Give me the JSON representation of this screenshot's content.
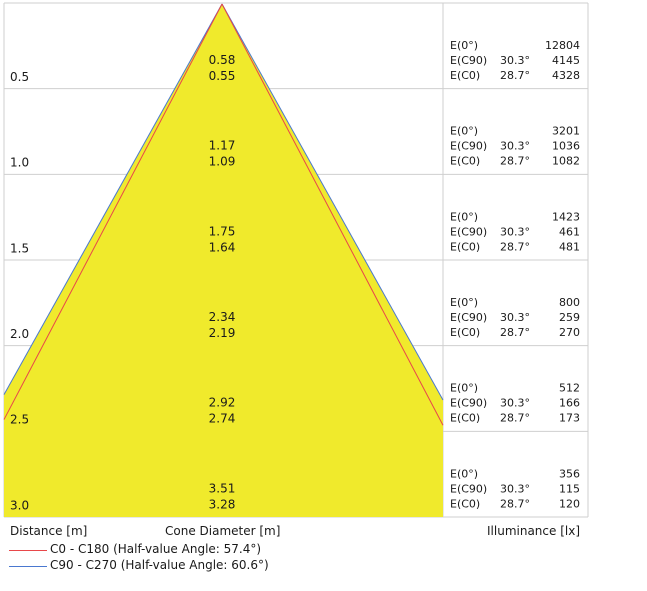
{
  "rows": [
    {
      "distance": "0.5",
      "diameter_c0": "0.55",
      "diameter_c90": "0.58",
      "e0": "12804",
      "e_c90_angle": "30.3°",
      "e_c90": "4145",
      "e_c0_angle": "28.7°",
      "e_c0": "4328"
    },
    {
      "distance": "1.0",
      "diameter_c0": "1.09",
      "diameter_c90": "1.17",
      "e0": "3201",
      "e_c90_angle": "30.3°",
      "e_c90": "1036",
      "e_c0_angle": "28.7°",
      "e_c0": "1082"
    },
    {
      "distance": "1.5",
      "diameter_c0": "1.64",
      "diameter_c90": "1.75",
      "e0": "1423",
      "e_c90_angle": "30.3°",
      "e_c90": "461",
      "e_c0_angle": "28.7°",
      "e_c0": "481"
    },
    {
      "distance": "2.0",
      "diameter_c0": "2.19",
      "diameter_c90": "2.34",
      "e0": "800",
      "e_c90_angle": "30.3°",
      "e_c90": "259",
      "e_c0_angle": "28.7°",
      "e_c0": "270"
    },
    {
      "distance": "2.5",
      "diameter_c0": "2.74",
      "diameter_c90": "2.92",
      "e0": "512",
      "e_c90_angle": "30.3°",
      "e_c90": "166",
      "e_c0_angle": "28.7°",
      "e_c0": "173"
    },
    {
      "distance": "3.0",
      "diameter_c0": "3.28",
      "diameter_c90": "3.51",
      "e0": "356",
      "e_c90_angle": "30.3°",
      "e_c90": "115",
      "e_c0_angle": "28.7°",
      "e_c0": "120"
    }
  ],
  "labels": {
    "e0": "E(0°)",
    "e_c90": "E(C90)",
    "e_c0": "E(C0)"
  },
  "footer": {
    "distance": "Distance [m]",
    "cone_diameter": "Cone Diameter [m]",
    "illuminance": "Illuminance [lx]",
    "legend_c0": "C0 - C180 (Half-value Angle: 57.4°)",
    "legend_c90": "C90 - C270 (Half-value Angle: 60.6°)"
  },
  "colors": {
    "cone_fill": "#f0ea2c",
    "c0_line": "#e8474a",
    "c90_line": "#4a78d0",
    "grid": "#cfcfcf"
  }
}
